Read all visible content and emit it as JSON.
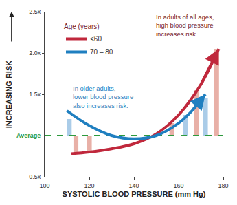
{
  "chart_data": {
    "type": "line",
    "x_label": "SYSTOLIC BLOOD PRESSURE (mm Hg)",
    "y_label": "INCREASING RISK",
    "legend_title": "Age (years)",
    "legend": "upper left",
    "grid": false,
    "xlim": [
      100,
      180
    ],
    "xticks": [
      100,
      120,
      140,
      160,
      180
    ],
    "ylim": [
      0.5,
      2.5
    ],
    "yticks": [
      {
        "value": 0.5,
        "label": "0.5x"
      },
      {
        "value": 1.0,
        "label": "Average"
      },
      {
        "value": 1.5,
        "label": "1.5x"
      },
      {
        "value": 2.0,
        "label": "2.0x"
      },
      {
        "value": 2.5,
        "label": "2.5x"
      }
    ],
    "annotations": [
      {
        "text": "In adults of all ages,\nhigh blood pressure\nincreases risk.",
        "color": "#7a1f2b"
      },
      {
        "text": "In older adults,\nlower blood pressure\nalso increases risk.",
        "color": "#1f7fc0"
      }
    ],
    "series": [
      {
        "type": "bar",
        "color": "#e0958a",
        "base": 1.0,
        "x": [
          114,
          120,
          157,
          168,
          177
        ],
        "values": [
          0.78,
          0.8,
          1.15,
          1.55,
          2.05
        ]
      },
      {
        "type": "bar",
        "color": "#8dbbe0",
        "base": 1.0,
        "x": [
          111,
          163,
          172
        ],
        "values": [
          1.2,
          1.25,
          1.45
        ]
      },
      {
        "type": "line",
        "color": "#2e9a3e",
        "line_style": "dash",
        "x": [
          100,
          180
        ],
        "values": [
          1.0,
          1.0
        ]
      },
      {
        "type": "line",
        "name": "<60",
        "color": "#c0283c",
        "marker": "arrow",
        "x": [
          112,
          120,
          130,
          140,
          150,
          160,
          170,
          178
        ],
        "values": [
          0.78,
          0.8,
          0.84,
          0.9,
          1.02,
          1.25,
          1.62,
          2.05
        ]
      },
      {
        "type": "line",
        "name": "70 – 80",
        "color": "#1f7fc0",
        "marker": "arrow",
        "x": [
          110,
          120,
          130,
          140,
          150,
          160,
          166,
          172
        ],
        "values": [
          1.3,
          1.12,
          1.0,
          0.96,
          1.0,
          1.15,
          1.3,
          1.5
        ]
      }
    ]
  }
}
